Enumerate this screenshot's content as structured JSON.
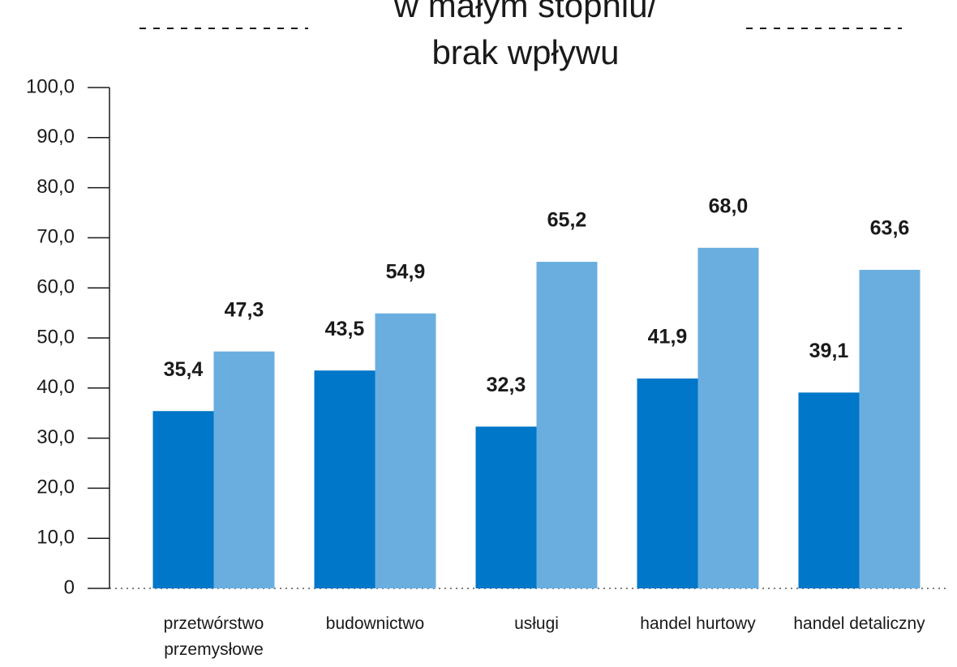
{
  "chart_data": {
    "type": "bar",
    "title": [
      "w małym stopniu/",
      "brak wpływu"
    ],
    "categories": [
      "przetwórstwo przemysłowe",
      "budownictwo",
      "usługi",
      "handel hurtowy",
      "handel detaliczny"
    ],
    "series": [
      {
        "color": "#0077c8",
        "values": [
          35.4,
          43.5,
          32.3,
          41.9,
          39.1
        ],
        "value_labels": [
          "35,4",
          "43,5",
          "32,3",
          "41,9",
          "39,1"
        ]
      },
      {
        "color": "#6aaee0",
        "values": [
          47.3,
          54.9,
          65.2,
          68.0,
          63.6
        ],
        "value_labels": [
          "47,3",
          "54,9",
          "65,2",
          "68,0",
          "63,6"
        ]
      }
    ],
    "ylim": [
      0,
      100
    ],
    "yticks": [
      0,
      {
        "value": 10,
        "label": "10,0"
      },
      {
        "value": 20,
        "label": "20,0"
      },
      {
        "value": 30,
        "label": "30,0"
      },
      {
        "value": 40,
        "label": "40,0"
      },
      {
        "value": 50,
        "label": "50,0"
      },
      {
        "value": 60,
        "label": "60,0"
      },
      {
        "value": 70,
        "label": "70,0"
      },
      {
        "value": 80,
        "label": "80,0"
      },
      {
        "value": 90,
        "label": "90,0"
      },
      {
        "value": 100,
        "label": "100,0"
      }
    ]
  }
}
